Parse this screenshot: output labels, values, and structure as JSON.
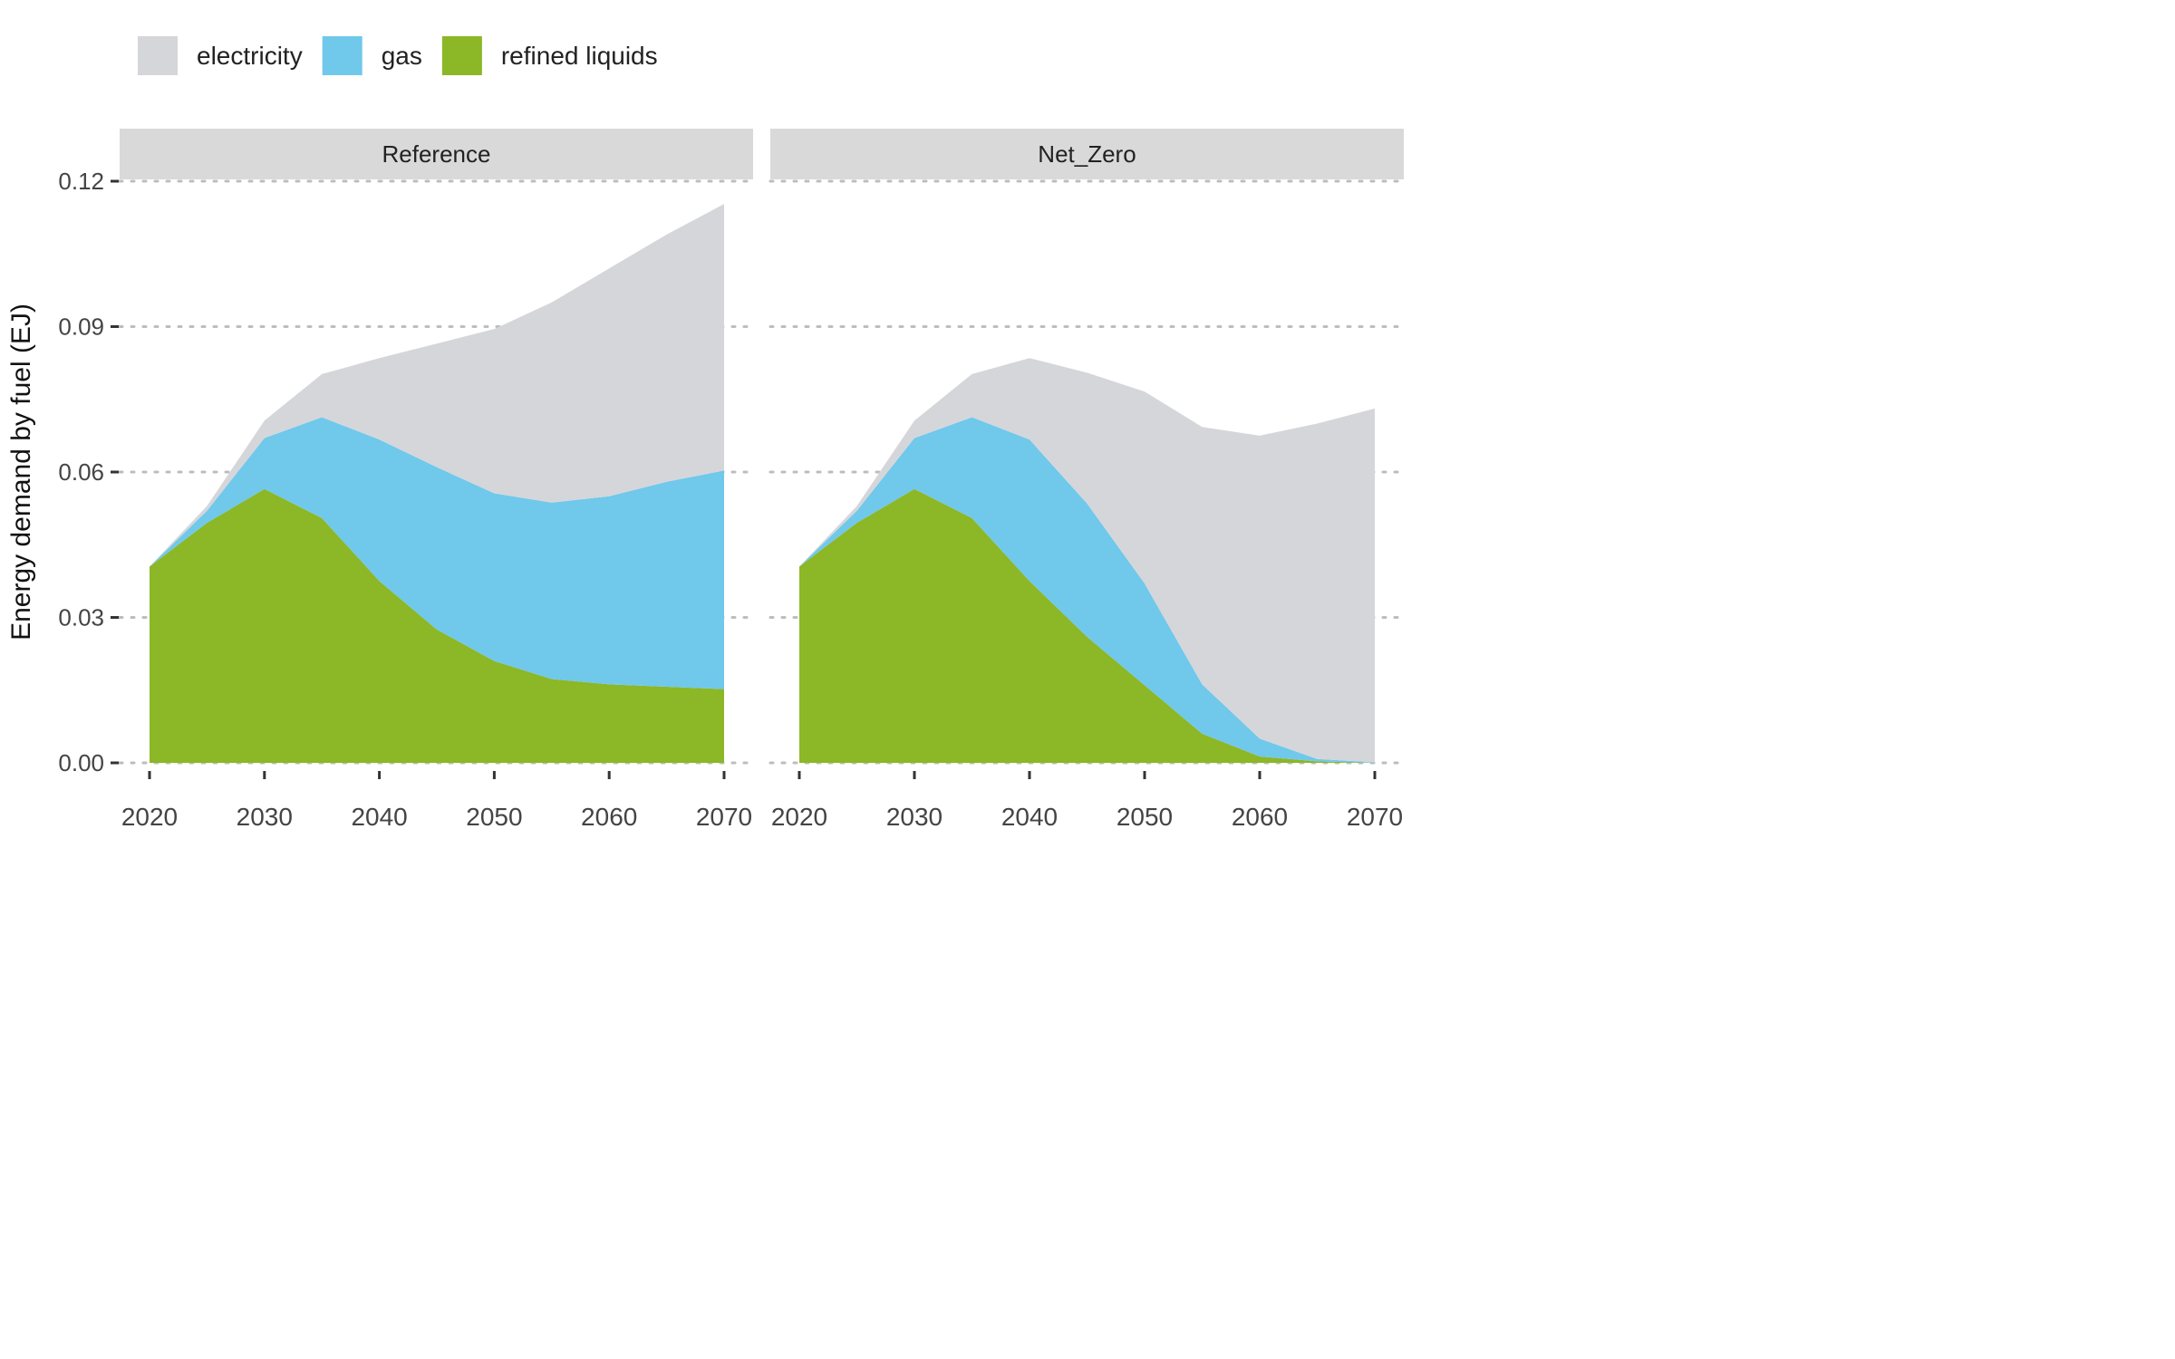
{
  "chart_data": {
    "type": "area",
    "stacked": true,
    "ylabel": "Energy demand by fuel (EJ)",
    "xlabel": "",
    "ylim": [
      0,
      0.12
    ],
    "yticks": [
      "0.00",
      "0.03",
      "0.06",
      "0.09",
      "0.12"
    ],
    "ytick_values": [
      0,
      0.03,
      0.06,
      0.09,
      0.12
    ],
    "xticks": [
      "2020",
      "2030",
      "2040",
      "2050",
      "2060",
      "2070"
    ],
    "xtick_values": [
      2020,
      2030,
      2040,
      2050,
      2060,
      2070
    ],
    "xlim": [
      2020,
      2070
    ],
    "grid": "horizontal dotted",
    "legend_position": "top-left",
    "legend": [
      {
        "name": "electricity",
        "color": "#d5d6da"
      },
      {
        "name": "gas",
        "color": "#70c8eb"
      },
      {
        "name": "refined liquids",
        "color": "#8cb726"
      }
    ],
    "x": [
      2020,
      2025,
      2030,
      2035,
      2040,
      2045,
      2050,
      2055,
      2060,
      2065,
      2070
    ],
    "panels": [
      {
        "title": "Reference",
        "series": [
          {
            "name": "refined liquids",
            "color": "#8cb726",
            "values": [
              0.0405,
              0.0495,
              0.0565,
              0.0505,
              0.0375,
              0.0275,
              0.021,
              0.0173,
              0.0162,
              0.0157,
              0.0152
            ]
          },
          {
            "name": "gas",
            "color": "#70c8eb",
            "values": [
              0.0,
              0.0025,
              0.0105,
              0.0208,
              0.0292,
              0.0335,
              0.0346,
              0.0364,
              0.0388,
              0.0423,
              0.0451
            ]
          },
          {
            "name": "electricity",
            "color": "#d5d6da",
            "values": [
              0.0,
              0.001,
              0.0036,
              0.0089,
              0.0168,
              0.0255,
              0.0339,
              0.0413,
              0.047,
              0.051,
              0.055
            ]
          }
        ]
      },
      {
        "title": "Net_Zero",
        "series": [
          {
            "name": "refined liquids",
            "color": "#8cb726",
            "values": [
              0.0405,
              0.0495,
              0.0565,
              0.0505,
              0.0375,
              0.026,
              0.016,
              0.006,
              0.0013,
              0.0003,
              0.0
            ]
          },
          {
            "name": "gas",
            "color": "#70c8eb",
            "values": [
              0.0,
              0.0025,
              0.0105,
              0.0208,
              0.0292,
              0.0275,
              0.021,
              0.0102,
              0.0037,
              0.0005,
              0.0001
            ]
          },
          {
            "name": "electricity",
            "color": "#d5d6da",
            "values": [
              0.0,
              0.001,
              0.0036,
              0.0089,
              0.0168,
              0.027,
              0.0396,
              0.0531,
              0.0625,
              0.0692,
              0.073
            ]
          }
        ]
      }
    ]
  }
}
